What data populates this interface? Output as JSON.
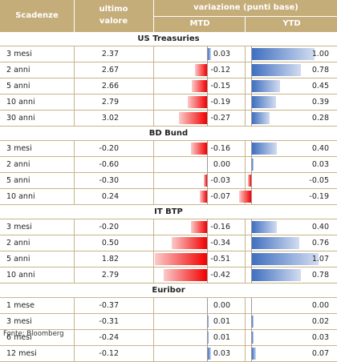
{
  "header": {
    "col_scadenze": "Scadenze",
    "col_ultimo_1": "ultimo",
    "col_ultimo_2": "valore",
    "col_variazione": "variazione (punti base)",
    "col_mtd": "MTD",
    "col_ytd": "YTD"
  },
  "colors": {
    "header_bg": "#c5ad7a",
    "negative_bar": "#f20000",
    "positive_bar": "#3f6fbf",
    "border": "#c8b48a"
  },
  "sections": [
    {
      "title": "US Treasuries",
      "rows": [
        {
          "label": "3 mesi",
          "value": "2.37",
          "mtd": "0.03",
          "ytd": "1.00"
        },
        {
          "label": "2 anni",
          "value": "2.67",
          "mtd": "-0.12",
          "ytd": "0.78"
        },
        {
          "label": "5 anni",
          "value": "2.66",
          "mtd": "-0.15",
          "ytd": "0.45"
        },
        {
          "label": "10 anni",
          "value": "2.79",
          "mtd": "-0.19",
          "ytd": "0.39"
        },
        {
          "label": "30 anni",
          "value": "3.02",
          "mtd": "-0.27",
          "ytd": "0.28"
        }
      ]
    },
    {
      "title": "BD Bund",
      "rows": [
        {
          "label": "3 mesi",
          "value": "-0.20",
          "mtd": "-0.16",
          "ytd": "0.40"
        },
        {
          "label": "2 anni",
          "value": "-0.60",
          "mtd": "0.00",
          "ytd": "0.03"
        },
        {
          "label": "5 anni",
          "value": "-0.30",
          "mtd": "-0.03",
          "ytd": "-0.05"
        },
        {
          "label": "10 anni",
          "value": "0.24",
          "mtd": "-0.07",
          "ytd": "-0.19"
        }
      ]
    },
    {
      "title": "IT BTP",
      "rows": [
        {
          "label": "3 mesi",
          "value": "-0.20",
          "mtd": "-0.16",
          "ytd": "0.40"
        },
        {
          "label": "2 anni",
          "value": "0.50",
          "mtd": "-0.34",
          "ytd": "0.76"
        },
        {
          "label": "5 anni",
          "value": "1.82",
          "mtd": "-0.51",
          "ytd": "1.07"
        },
        {
          "label": "10 anni",
          "value": "2.79",
          "mtd": "-0.42",
          "ytd": "0.78"
        }
      ]
    },
    {
      "title": "Euribor",
      "rows": [
        {
          "label": "1 mese",
          "value": "-0.37",
          "mtd": "0.00",
          "ytd": "0.00"
        },
        {
          "label": "3 mesi",
          "value": "-0.31",
          "mtd": "0.01",
          "ytd": "0.02"
        },
        {
          "label": "6 mesi",
          "value": "-0.24",
          "mtd": "0.01",
          "ytd": "0.03"
        },
        {
          "label": "12 mesi",
          "value": "-0.12",
          "mtd": "0.03",
          "ytd": "0.07"
        }
      ]
    }
  ],
  "source": "Fonte: Bloomberg"
}
